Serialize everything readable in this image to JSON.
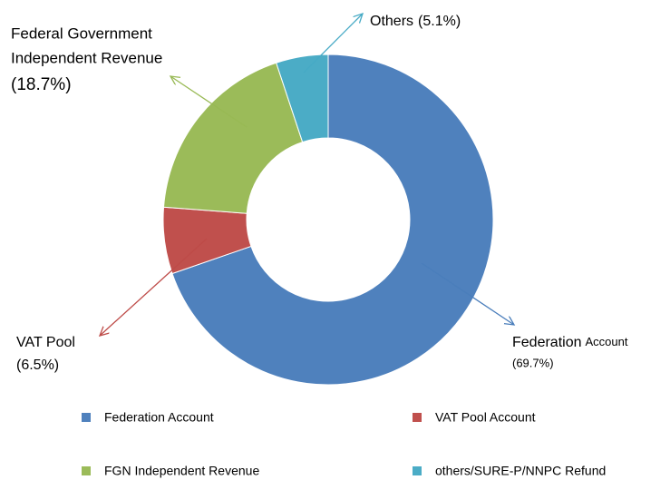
{
  "chart_data": {
    "type": "donut",
    "categories": [
      "Federation Account",
      "VAT Pool Account",
      "FGN Independent Revenue",
      "others/SURE-P/NNPC Refund"
    ],
    "values": [
      69.7,
      6.5,
      18.7,
      5.1
    ],
    "value_labels": [
      "(69.7%)",
      "(6.5%)",
      "(18.7%)",
      "(5.1%)"
    ],
    "colors": [
      "#4f81bd",
      "#c0504d",
      "#9bbb59",
      "#4bacc6"
    ],
    "callouts": [
      [
        "Federation",
        "Account"
      ],
      [
        "VAT Pool"
      ],
      [
        "Federal Government",
        "Independent Revenue"
      ],
      [
        "Others"
      ]
    ]
  }
}
